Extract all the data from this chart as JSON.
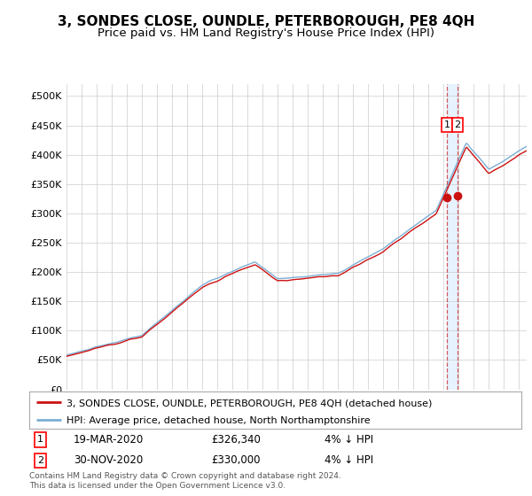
{
  "title": "3, SONDES CLOSE, OUNDLE, PETERBOROUGH, PE8 4QH",
  "subtitle": "Price paid vs. HM Land Registry's House Price Index (HPI)",
  "ylabel_ticks": [
    "£0",
    "£50K",
    "£100K",
    "£150K",
    "£200K",
    "£250K",
    "£300K",
    "£350K",
    "£400K",
    "£450K",
    "£500K"
  ],
  "ytick_values": [
    0,
    50000,
    100000,
    150000,
    200000,
    250000,
    300000,
    350000,
    400000,
    450000,
    500000
  ],
  "ylim": [
    0,
    520000
  ],
  "xlim_start": 1995.0,
  "xlim_end": 2025.5,
  "hpi_color": "#7bafd4",
  "price_color": "#cc1111",
  "marker_color": "#cc1111",
  "dashed_line_color": "#cc3333",
  "shade_color": "#ddeeff",
  "legend1": "3, SONDES CLOSE, OUNDLE, PETERBOROUGH, PE8 4QH (detached house)",
  "legend2": "HPI: Average price, detached house, North Northamptonshire",
  "annotation1_num": "1",
  "annotation1_date": "19-MAR-2020",
  "annotation1_price": "£326,340",
  "annotation1_hpi": "4% ↓ HPI",
  "annotation2_num": "2",
  "annotation2_date": "30-NOV-2020",
  "annotation2_price": "£330,000",
  "annotation2_hpi": "4% ↓ HPI",
  "footer": "Contains HM Land Registry data © Crown copyright and database right 2024.\nThis data is licensed under the Open Government Licence v3.0.",
  "title_fontsize": 11,
  "subtitle_fontsize": 9.5,
  "bg_color": "#ffffff",
  "grid_color": "#cccccc",
  "purchase1_x": 2020.22,
  "purchase1_y": 326340,
  "purchase2_x": 2020.92,
  "purchase2_y": 330000
}
